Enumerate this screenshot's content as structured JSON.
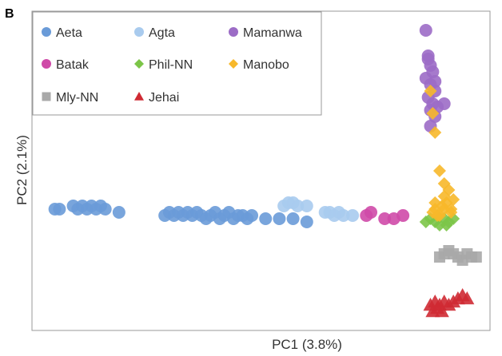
{
  "chart_data": {
    "type": "scatter",
    "panel_label": "B",
    "xlabel": "PC1 (3.8%)",
    "ylabel": "PC2 (2.1%)",
    "xlim": [
      0,
      100
    ],
    "ylim": [
      0,
      100
    ],
    "grid": false,
    "legend_position": "top-left",
    "series": [
      {
        "name": "Aeta",
        "color": "#6a9bd8",
        "marker": "circle",
        "x": [
          5,
          6,
          9,
          10,
          11,
          12,
          13,
          14,
          15,
          16,
          19,
          29,
          30,
          31,
          32,
          33,
          34,
          35,
          36,
          37,
          38,
          39,
          40,
          41,
          42,
          43,
          44,
          45,
          46,
          47,
          48,
          51,
          54,
          57,
          60
        ],
        "y": [
          38,
          38,
          39,
          38,
          39,
          38,
          39,
          38,
          39,
          38,
          37,
          36,
          37,
          36,
          37,
          36,
          37,
          36,
          37,
          36,
          35,
          36,
          37,
          35,
          36,
          37,
          35,
          36,
          36,
          35,
          36,
          35,
          35,
          35,
          34
        ]
      },
      {
        "name": "Agta",
        "color": "#a9cbee",
        "marker": "circle",
        "x": [
          55,
          56,
          57,
          58,
          60,
          64,
          65,
          66,
          67,
          68,
          70
        ],
        "y": [
          39,
          40,
          40,
          39,
          39,
          37,
          37,
          36,
          37,
          36,
          36
        ]
      },
      {
        "name": "Batak",
        "color": "#cf4aa8",
        "marker": "circle",
        "x": [
          73,
          74,
          77,
          79,
          81
        ],
        "y": [
          36,
          37,
          35,
          35,
          36
        ]
      },
      {
        "name": "Mamanwa",
        "color": "#9c6cc6",
        "marker": "circle",
        "x": [
          86,
          86.5,
          87,
          87.5,
          86,
          87,
          88,
          86.5,
          87.5,
          88.5,
          87,
          88,
          90,
          87,
          86.5,
          88
        ],
        "y": [
          94,
          85,
          83,
          81,
          79,
          77,
          75,
          73,
          71,
          70,
          69,
          67,
          71,
          64,
          86,
          78
        ]
      },
      {
        "name": "Phil-NN",
        "color": "#7cc548",
        "marker": "diamond",
        "x": [
          86,
          87,
          88,
          89,
          90,
          91,
          92,
          88.5,
          90.5
        ],
        "y": [
          34,
          35,
          34,
          33,
          35,
          34,
          35,
          36,
          33
        ]
      },
      {
        "name": "Manobo",
        "color": "#f7b82a",
        "marker": "diamond",
        "x": [
          87,
          87.5,
          88,
          89,
          90,
          91,
          92,
          88,
          89.5,
          90.5,
          91.5,
          87.5,
          88.5,
          90,
          91.5,
          89,
          88,
          90
        ],
        "y": [
          75,
          68,
          62,
          50,
          46,
          44,
          41,
          38,
          39,
          40,
          38,
          37,
          36,
          38,
          37,
          36,
          40,
          42
        ]
      },
      {
        "name": "Mly-NN",
        "color": "#a9a9a9",
        "marker": "square",
        "x": [
          89,
          90,
          91,
          92,
          93,
          94,
          95,
          96,
          97
        ],
        "y": [
          23,
          24,
          25,
          24,
          23,
          22,
          24,
          23,
          23
        ]
      },
      {
        "name": "Jehai",
        "color": "#cf2a33",
        "marker": "triangle",
        "x": [
          87,
          88,
          88.5,
          89,
          90,
          91,
          92,
          93,
          94,
          95,
          87.5,
          89.5
        ],
        "y": [
          8,
          9,
          7,
          8,
          9,
          8,
          9,
          10,
          11,
          10,
          6,
          6
        ]
      }
    ]
  }
}
